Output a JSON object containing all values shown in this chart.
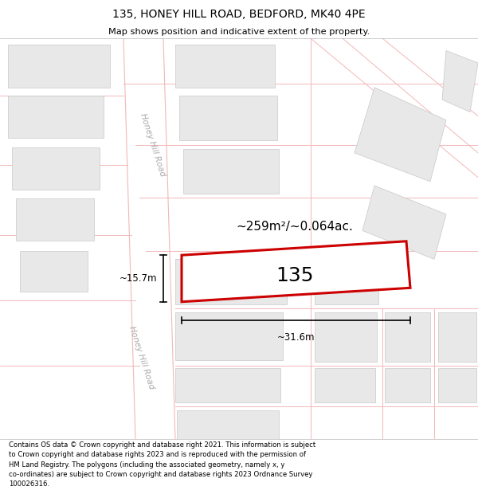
{
  "title": "135, HONEY HILL ROAD, BEDFORD, MK40 4PE",
  "subtitle": "Map shows position and indicative extent of the property.",
  "footer": "Contains OS data © Crown copyright and database right 2021. This information is subject\nto Crown copyright and database rights 2023 and is reproduced with the permission of\nHM Land Registry. The polygons (including the associated geometry, namely x, y\nco-ordinates) are subject to Crown copyright and database rights 2023 Ordnance Survey\n100026316.",
  "bg_color": "#ffffff",
  "road_color": "#f2b8b8",
  "building_color": "#e8e8e8",
  "building_edge": "#c8c8c8",
  "highlight_color": "#cc0000",
  "area_text": "~259m²/~0.064ac.",
  "width_text": "~31.6m",
  "height_text": "~15.7m",
  "number_text": "135",
  "road_label_upper": "Honey Hill Road",
  "road_label_lower": "Honey Hill Road"
}
